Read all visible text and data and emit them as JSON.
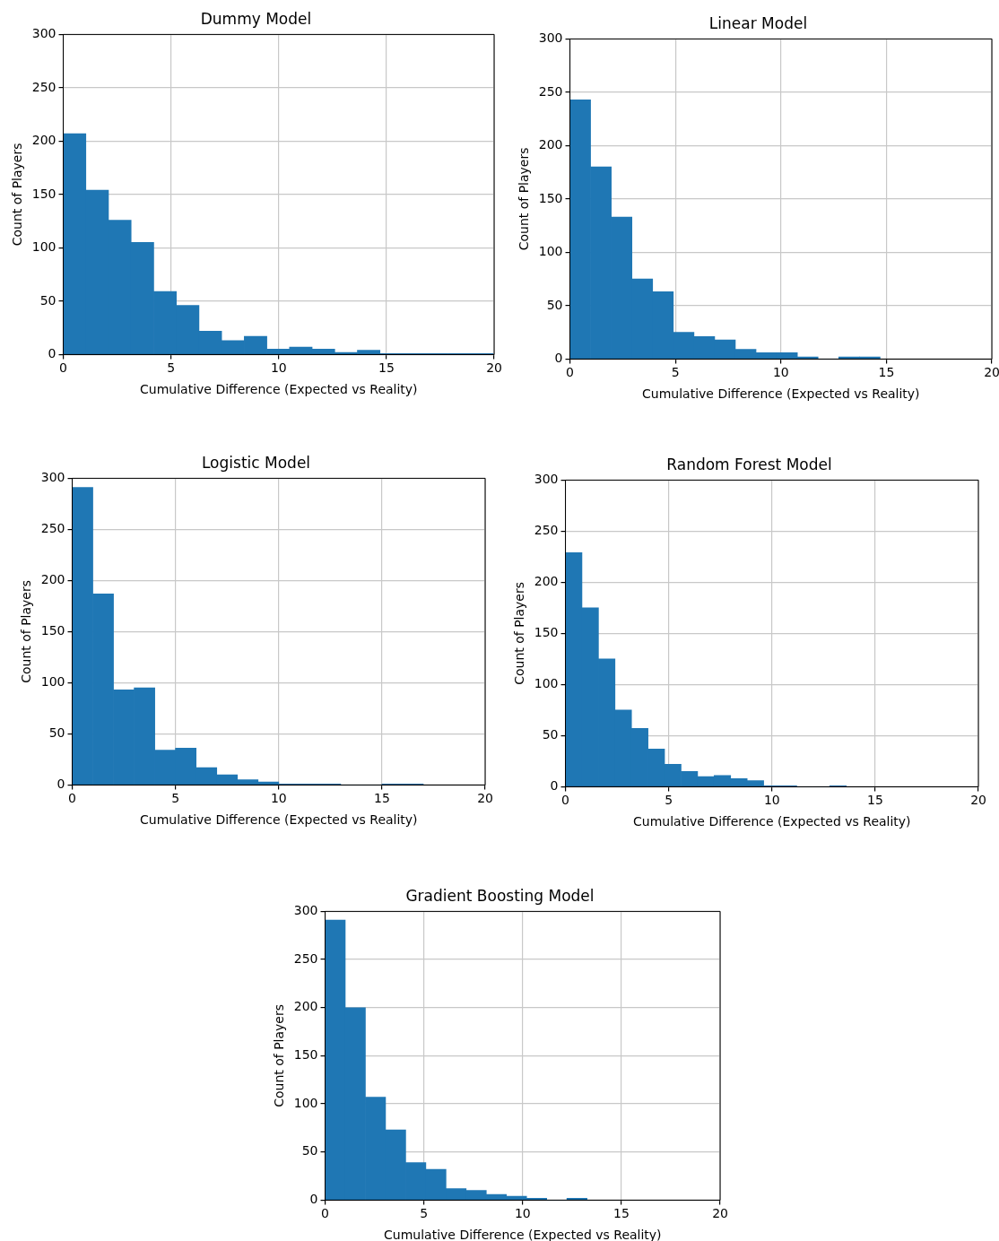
{
  "chart_data": [
    {
      "type": "histogram",
      "title": "Dummy Model",
      "xlabel": "Cumulative Difference (Expected vs Reality)",
      "ylabel": "Count of Players",
      "color": "#1f77b4",
      "grid": true,
      "bins": [
        0,
        1.05,
        2.1,
        3.15,
        4.2,
        5.25,
        6.3,
        7.35,
        8.4,
        9.45,
        10.5,
        11.55,
        12.6,
        13.65,
        14.7,
        15.75,
        16.8,
        17.85,
        18.9,
        19.95
      ],
      "values": [
        207,
        154,
        126,
        105,
        59,
        46,
        22,
        13,
        17,
        5,
        7,
        5,
        2,
        4,
        1,
        1,
        1,
        1,
        1
      ],
      "xlim": [
        0,
        20
      ],
      "xticks": [
        0,
        5,
        10,
        15,
        20
      ],
      "ylim": [
        0,
        300
      ],
      "yticks": [
        0,
        50,
        100,
        150,
        200,
        250,
        300
      ]
    },
    {
      "type": "histogram",
      "title": "Linear Model",
      "xlabel": "Cumulative Difference (Expected vs Reality)",
      "ylabel": "Count of Players",
      "color": "#1f77b4",
      "grid": true,
      "bins": [
        0,
        0.98,
        1.96,
        2.94,
        3.92,
        4.9,
        5.88,
        6.86,
        7.84,
        8.82,
        9.8,
        10.78,
        11.76,
        12.74,
        13.72,
        14.7
      ],
      "values": [
        243,
        180,
        133,
        75,
        63,
        25,
        21,
        18,
        9,
        6,
        6,
        2,
        0,
        2,
        2
      ],
      "xlim": [
        0,
        20
      ],
      "xticks": [
        0,
        5,
        10,
        15,
        20
      ],
      "ylim": [
        0,
        300
      ],
      "yticks": [
        0,
        50,
        100,
        150,
        200,
        250,
        300
      ]
    },
    {
      "type": "histogram",
      "title": "Logistic Model",
      "xlabel": "Cumulative Difference (Expected vs Reality)",
      "ylabel": "Count of Players",
      "color": "#1f77b4",
      "grid": true,
      "bins": [
        0,
        1,
        2,
        3,
        4,
        5,
        6,
        7,
        8,
        9,
        10,
        11,
        12,
        13,
        14,
        15,
        16,
        17
      ],
      "values": [
        291,
        187,
        93,
        95,
        34,
        36,
        17,
        10,
        5,
        3,
        1,
        1,
        1,
        0,
        0,
        1,
        1
      ],
      "xlim": [
        0,
        20
      ],
      "xticks": [
        0,
        5,
        10,
        15,
        20
      ],
      "ylim": [
        0,
        300
      ],
      "yticks": [
        0,
        50,
        100,
        150,
        200,
        250,
        300
      ]
    },
    {
      "type": "histogram",
      "title": "Random Forest Model",
      "xlabel": "Cumulative Difference (Expected vs Reality)",
      "ylabel": "Count of Players",
      "color": "#1f77b4",
      "grid": true,
      "bins": [
        0,
        0.8,
        1.6,
        2.4,
        3.2,
        4,
        4.8,
        5.6,
        6.4,
        7.2,
        8,
        8.8,
        9.6,
        10.4,
        11.2,
        12,
        12.8,
        13.6
      ],
      "values": [
        229,
        175,
        125,
        75,
        57,
        37,
        22,
        15,
        10,
        11,
        8,
        6,
        1,
        1,
        0,
        0,
        1
      ],
      "xlim": [
        0,
        20
      ],
      "xticks": [
        0,
        5,
        10,
        15,
        20
      ],
      "ylim": [
        0,
        300
      ],
      "yticks": [
        0,
        50,
        100,
        150,
        200,
        250,
        300
      ]
    },
    {
      "type": "histogram",
      "title": "Gradient Boosting Model",
      "xlabel": "Cumulative Difference (Expected vs Reality)",
      "ylabel": "Count of Players",
      "color": "#1f77b4",
      "grid": true,
      "bins": [
        0,
        1.02,
        2.04,
        3.06,
        4.08,
        5.1,
        6.12,
        7.14,
        8.16,
        9.18,
        10.2,
        11.22,
        12.24,
        13.26
      ],
      "values": [
        291,
        200,
        107,
        73,
        39,
        32,
        12,
        10,
        6,
        4,
        2,
        0,
        2
      ],
      "xlim": [
        0,
        20
      ],
      "xticks": [
        0,
        5,
        10,
        15,
        20
      ],
      "ylim": [
        0,
        300
      ],
      "yticks": [
        0,
        50,
        100,
        150,
        200,
        250,
        300
      ]
    }
  ]
}
